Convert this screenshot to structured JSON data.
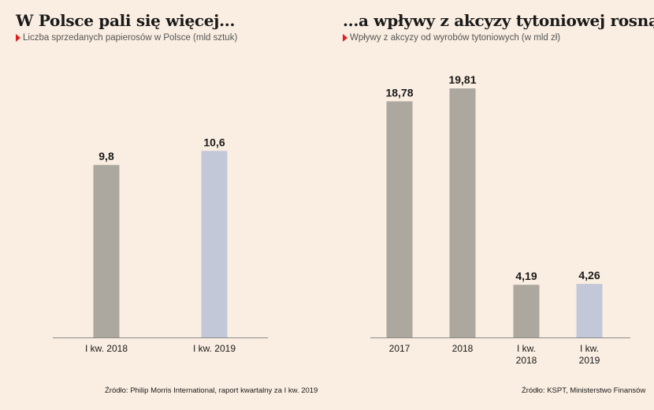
{
  "left": {
    "title": "W Polsce pali się więcej...",
    "subtitle": "Liczba sprzedanych papierosów w Polsce (mld sztuk)",
    "source": "Źródło: Philip Morris International, raport kwartalny za I kw. 2019"
  },
  "right": {
    "title": "...a wpływy z akcyzy tytoniowej rosną",
    "subtitle": "Wpływy z akcyzy od wyrobów tytoniowych (w mld zł)",
    "source": "Źródło: KSPT, Ministerstwo Finansów"
  },
  "colors": {
    "background": "#faeee2",
    "bar_default": "#aca79f",
    "bar_highlight": "#c3c8d8",
    "marker": "#e02020",
    "axis": "#8a8a8a"
  },
  "chart_data": [
    {
      "type": "bar",
      "title": "W Polsce pali się więcej...",
      "ylabel": "Liczba sprzedanych papierosów w Polsce (mld sztuk)",
      "categories": [
        "I kw. 2018",
        "I kw. 2019"
      ],
      "values": [
        9.8,
        10.6
      ],
      "value_labels": [
        "9,8",
        "10,6"
      ],
      "highlight": [
        false,
        true
      ],
      "ylim": [
        0,
        15.5
      ],
      "grid": false
    },
    {
      "type": "bar",
      "title": "...a wpływy z akcyzy tytoniowej rosną",
      "ylabel": "Wpływy z akcyzy od wyrobów tytoniowych (w mld zł)",
      "categories": [
        [
          "2017"
        ],
        [
          "2018"
        ],
        [
          "I kw.",
          "2018"
        ],
        [
          "I kw.",
          "2019"
        ]
      ],
      "values": [
        18.78,
        19.81,
        4.19,
        4.26
      ],
      "value_labels": [
        "18,78",
        "19,81",
        "4,19",
        "4,26"
      ],
      "highlight": [
        false,
        false,
        false,
        true
      ],
      "ylim": [
        0,
        21.7
      ],
      "grid": false
    }
  ]
}
